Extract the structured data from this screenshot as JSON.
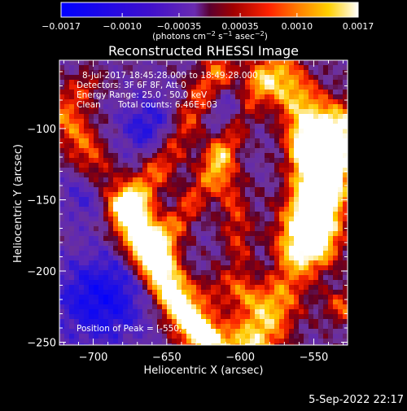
{
  "chart_data": {
    "type": "heatmap",
    "title": "Reconstructed RHESSI Image",
    "xlabel": "Heliocentric X (arcsec)",
    "ylabel": "Heliocentric Y (arcsec)",
    "xlim": [
      -723,
      -527
    ],
    "ylim": [
      -252,
      -52
    ],
    "xticks": [
      {
        "value": -700,
        "label": "−700"
      },
      {
        "value": -650,
        "label": "−650"
      },
      {
        "value": -600,
        "label": "−600"
      },
      {
        "value": -550,
        "label": "−550"
      }
    ],
    "yticks": [
      {
        "value": -100,
        "label": "−100"
      },
      {
        "value": -150,
        "label": "−150"
      },
      {
        "value": -200,
        "label": "−200"
      },
      {
        "value": -250,
        "label": "−250"
      }
    ],
    "colorbar": {
      "range": [
        -0.0017,
        0.0017
      ],
      "ticks": [
        {
          "value": -0.0017,
          "label": "−0.0017"
        },
        {
          "value": -0.001,
          "label": "−0.0010"
        },
        {
          "value": -0.00035,
          "label": "−0.00035"
        },
        {
          "value": 0.00035,
          "label": "0.00035"
        },
        {
          "value": 0.001,
          "label": "0.0010"
        },
        {
          "value": 0.0017,
          "label": "0.0017"
        }
      ],
      "units": {
        "base": "(photons cm",
        "sup1": "−2",
        "mid1": " s",
        "sup2": "−1",
        "mid2": " asec",
        "sup3": "−2",
        "end": ")"
      },
      "colormap": "blue-purple-red-yellow-white"
    },
    "annotations": {
      "time_range": "8-Jul-2017 18:45:28.000 to 18:49:28.000",
      "detectors": "Detectors: 3F 6F 8F, Att 0",
      "energy_range": "Energy Range: 25.0 - 50.0 keV",
      "method": "Clean",
      "total_counts": "Total counts: 6.46E+03",
      "peak": "Position of Peak = [-550,-113]"
    },
    "peak_position": [
      -550,
      -113
    ],
    "image_features": [
      {
        "kind": "ridge",
        "points": [
          [
            -720,
            -88
          ],
          [
            -698,
            -128
          ],
          [
            -678,
            -162
          ],
          [
            -658,
            -195
          ],
          [
            -638,
            -228
          ],
          [
            -618,
            -250
          ]
        ],
        "intensity": 0.62,
        "width": 10
      },
      {
        "kind": "ridge",
        "points": [
          [
            -672,
            -150
          ],
          [
            -652,
            -122
          ],
          [
            -633,
            -90
          ],
          [
            -614,
            -60
          ]
        ],
        "intensity": 0.66,
        "width": 9
      },
      {
        "kind": "ridge",
        "points": [
          [
            -642,
            -165
          ],
          [
            -622,
            -135
          ],
          [
            -603,
            -100
          ],
          [
            -588,
            -70
          ]
        ],
        "intensity": 0.5,
        "width": 7
      },
      {
        "kind": "ridge",
        "points": [
          [
            -675,
            -158
          ],
          [
            -660,
            -190
          ],
          [
            -645,
            -218
          ],
          [
            -628,
            -245
          ]
        ],
        "intensity": 0.72,
        "width": 9
      },
      {
        "kind": "ridge",
        "points": [
          [
            -592,
            -252
          ],
          [
            -578,
            -222
          ],
          [
            -565,
            -190
          ],
          [
            -552,
            -158
          ],
          [
            -540,
            -125
          ],
          [
            -530,
            -100
          ]
        ],
        "intensity": 0.92,
        "width": 13
      },
      {
        "kind": "ridge",
        "points": [
          [
            -575,
            -62
          ],
          [
            -560,
            -82
          ],
          [
            -550,
            -105
          ],
          [
            -545,
            -140
          ],
          [
            -548,
            -180
          ]
        ],
        "intensity": 0.85,
        "width": 12
      },
      {
        "kind": "ridge",
        "points": [
          [
            -615,
            -120
          ],
          [
            -605,
            -150
          ],
          [
            -600,
            -185
          ],
          [
            -598,
            -215
          ]
        ],
        "intensity": 0.45,
        "width": 8
      },
      {
        "kind": "blob",
        "center": [
          -550,
          -113
        ],
        "intensity": 1.0,
        "width": 10
      },
      {
        "kind": "blob",
        "center": [
          -655,
          -180
        ],
        "intensity": 0.75,
        "width": 9
      },
      {
        "kind": "blob",
        "center": [
          -615,
          -212
        ],
        "intensity": 0.35,
        "width": 9
      },
      {
        "kind": "blob",
        "center": [
          -705,
          -70
        ],
        "intensity": 0.4,
        "width": 8
      },
      {
        "kind": "blob",
        "center": [
          -530,
          -225
        ],
        "intensity": 0.55,
        "width": 9
      },
      {
        "kind": "trough",
        "center": [
          -695,
          -220
        ],
        "intensity": -0.75,
        "width": 22
      },
      {
        "kind": "trough",
        "center": [
          -660,
          -100
        ],
        "intensity": -0.55,
        "width": 16
      },
      {
        "kind": "trough",
        "center": [
          -700,
          -145
        ],
        "intensity": -0.5,
        "width": 14
      },
      {
        "kind": "trough",
        "center": [
          -610,
          -85
        ],
        "intensity": -0.4,
        "width": 12
      },
      {
        "kind": "trough",
        "center": [
          -580,
          -200
        ],
        "intensity": -0.45,
        "width": 14
      }
    ]
  },
  "footer": {
    "date": "5-Sep-2022 22:17"
  }
}
